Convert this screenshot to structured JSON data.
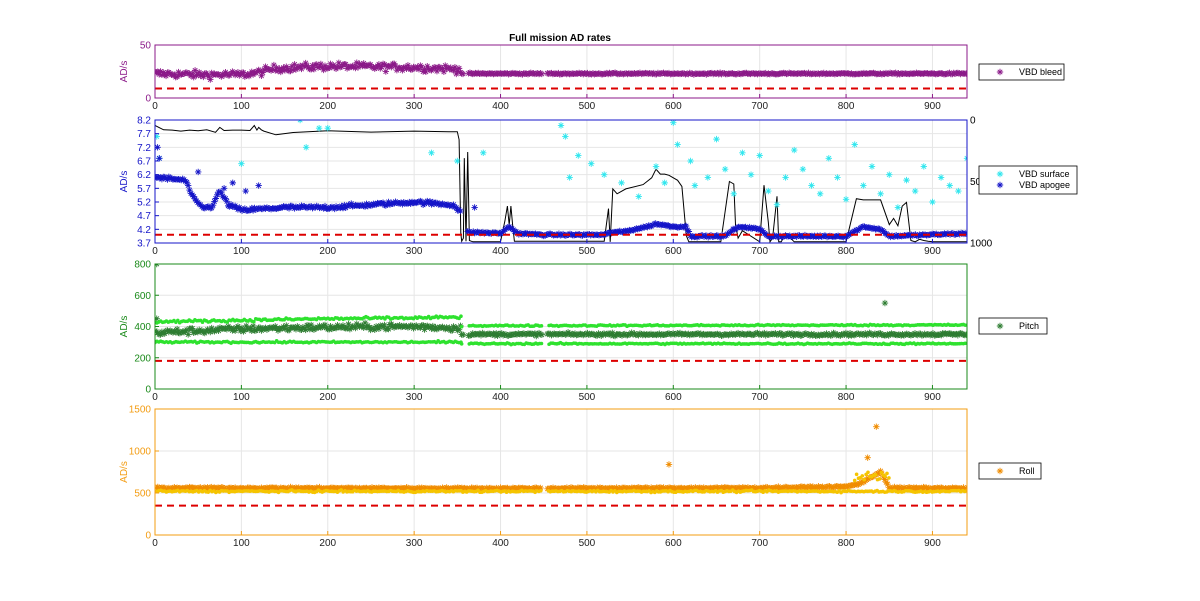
{
  "figure": {
    "title": "Full mission AD rates"
  },
  "chart_data": [
    {
      "type": "scatter",
      "ylabel": "AD/s",
      "xlim": [
        0,
        940
      ],
      "ylim": [
        0,
        50
      ],
      "xticks": [
        0,
        100,
        200,
        300,
        400,
        500,
        600,
        700,
        800,
        900
      ],
      "yticks": [
        0,
        50
      ],
      "grid": true,
      "legend_position": "right",
      "axis_color": "#8b1a89",
      "threshold": {
        "value": 9,
        "color": "#dd0000",
        "style": "dashed"
      },
      "gaps": [
        [
          357,
          362
        ],
        [
          448,
          454
        ]
      ],
      "series": [
        {
          "name": "VBD bleed",
          "color": "#8b1a89",
          "marker": "asterisk",
          "segments": [
            {
              "x": [
                0,
                50,
                100,
                120,
                140,
                200,
                300,
                355
              ],
              "y": [
                23,
                22,
                22,
                24,
                28,
                30,
                29,
                27
              ],
              "spread": 6
            },
            {
              "x": [
                355,
                940
              ],
              "y": [
                23,
                23
              ],
              "spread": 1.2
            }
          ]
        }
      ]
    },
    {
      "type": "scatter",
      "ylabel": "AD/s",
      "xlim": [
        0,
        940
      ],
      "ylim": [
        3.7,
        8.2
      ],
      "xticks": [
        0,
        100,
        200,
        300,
        400,
        500,
        600,
        700,
        800,
        900
      ],
      "yticks": [
        3.7,
        4.2,
        4.7,
        5.2,
        5.7,
        6.2,
        6.7,
        7.2,
        7.7,
        8.2
      ],
      "y2lim": [
        0,
        1000
      ],
      "y2ticks": [
        0,
        500,
        1000
      ],
      "y2reversed": true,
      "grid": true,
      "legend_position": "right",
      "axis_color": "#1515c8",
      "threshold": {
        "value": 4.0,
        "color": "#dd0000",
        "style": "dashed"
      },
      "series": [
        {
          "name": "VBD surface",
          "color": "#2fe6ee",
          "marker": "asterisk",
          "points": [
            [
              2,
              7.6
            ],
            [
              5,
              6.8
            ],
            [
              100,
              6.6
            ],
            [
              168,
              8.2
            ],
            [
              175,
              7.2
            ],
            [
              190,
              7.9
            ],
            [
              200,
              7.9
            ],
            [
              320,
              7.0
            ],
            [
              350,
              6.7
            ],
            [
              380,
              7.0
            ],
            [
              470,
              8.0
            ],
            [
              475,
              7.6
            ],
            [
              480,
              6.1
            ],
            [
              490,
              6.9
            ],
            [
              505,
              6.6
            ],
            [
              520,
              6.2
            ],
            [
              540,
              5.9
            ],
            [
              560,
              5.4
            ],
            [
              580,
              6.5
            ],
            [
              590,
              5.9
            ],
            [
              600,
              8.1
            ],
            [
              605,
              7.3
            ],
            [
              620,
              6.7
            ],
            [
              625,
              5.8
            ],
            [
              640,
              6.1
            ],
            [
              650,
              7.5
            ],
            [
              660,
              6.4
            ],
            [
              670,
              5.5
            ],
            [
              680,
              7.0
            ],
            [
              690,
              6.2
            ],
            [
              700,
              6.9
            ],
            [
              710,
              5.6
            ],
            [
              720,
              5.1
            ],
            [
              730,
              6.1
            ],
            [
              740,
              7.1
            ],
            [
              750,
              6.4
            ],
            [
              760,
              5.8
            ],
            [
              770,
              5.5
            ],
            [
              780,
              6.8
            ],
            [
              790,
              6.1
            ],
            [
              800,
              5.3
            ],
            [
              810,
              7.3
            ],
            [
              820,
              5.8
            ],
            [
              830,
              6.5
            ],
            [
              840,
              5.5
            ],
            [
              850,
              6.2
            ],
            [
              860,
              5.0
            ],
            [
              870,
              6.0
            ],
            [
              880,
              5.6
            ],
            [
              890,
              6.5
            ],
            [
              900,
              5.2
            ],
            [
              910,
              6.1
            ],
            [
              920,
              5.8
            ],
            [
              930,
              5.6
            ],
            [
              940,
              6.8
            ]
          ]
        },
        {
          "name": "VBD apogee",
          "color": "#1515c8",
          "marker": "asterisk",
          "segments": [
            {
              "x": [
                0,
                35,
                45,
                55,
                65,
                75,
                85,
                100,
                150,
                200,
                250,
                300,
                345,
                355
              ],
              "y": [
                6.1,
                6.0,
                5.3,
                5.0,
                5.0,
                5.6,
                5.1,
                4.9,
                5.0,
                5.0,
                5.1,
                5.2,
                5.1,
                4.8
              ],
              "spread": 0.12
            },
            {
              "x": [
                362,
                400,
                410,
                420,
                450,
                520,
                530,
                540,
                570,
                580,
                600,
                615,
                620,
                660,
                670,
                680,
                700,
                710,
                800,
                820,
                840,
                850,
                940
              ],
              "y": [
                4.1,
                4.05,
                4.3,
                4.05,
                4.0,
                4.0,
                4.1,
                4.1,
                4.3,
                4.4,
                4.3,
                4.3,
                3.95,
                3.95,
                4.2,
                4.3,
                4.2,
                3.95,
                3.95,
                4.3,
                4.2,
                3.95,
                4.05
              ],
              "spread": 0.06
            }
          ],
          "extra_points": [
            [
              3,
              7.2
            ],
            [
              5,
              6.8
            ],
            [
              50,
              6.3
            ],
            [
              80,
              5.7
            ],
            [
              90,
              5.9
            ],
            [
              105,
              5.6
            ],
            [
              120,
              5.8
            ],
            [
              370,
              5.0
            ]
          ]
        }
      ],
      "secondary_line": {
        "color": "#000000",
        "x": [
          0,
          10,
          20,
          30,
          40,
          50,
          60,
          70,
          75,
          80,
          90,
          100,
          110,
          115,
          118,
          120,
          123,
          126,
          140,
          160,
          200,
          250,
          300,
          340,
          350,
          352,
          354,
          355,
          357,
          358,
          360,
          362,
          364,
          366,
          368,
          400,
          405,
          408,
          410,
          412,
          414,
          416,
          420,
          460,
          520,
          525,
          527,
          530,
          535,
          540,
          545,
          565,
          575,
          580,
          585,
          590,
          595,
          600,
          605,
          610,
          615,
          618,
          620,
          640,
          655,
          665,
          670,
          672,
          675,
          680,
          700,
          705,
          710,
          712,
          715,
          720,
          722,
          725,
          730,
          740,
          800,
          812,
          820,
          840,
          850,
          855,
          860,
          865,
          870,
          875,
          880,
          885,
          890,
          895,
          900,
          940
        ],
        "y": [
          45,
          80,
          82,
          90,
          82,
          88,
          80,
          100,
          60,
          85,
          82,
          82,
          85,
          45,
          82,
          60,
          80,
          90,
          120,
          102,
          88,
          98,
          90,
          95,
          95,
          160,
          920,
          985,
          960,
          310,
          985,
          260,
          980,
          985,
          990,
          990,
          820,
          700,
          855,
          700,
          850,
          985,
          985,
          985,
          985,
          720,
          990,
          560,
          600,
          580,
          560,
          525,
          470,
          400,
          440,
          440,
          450,
          470,
          490,
          540,
          940,
          990,
          990,
          990,
          990,
          500,
          520,
          850,
          960,
          900,
          990,
          530,
          830,
          990,
          960,
          620,
          990,
          990,
          920,
          990,
          990,
          640,
          650,
          650,
          850,
          800,
          860,
          700,
          670,
          980,
          990,
          970,
          980,
          985,
          990,
          990
        ]
      }
    },
    {
      "type": "scatter",
      "ylabel": "AD/s",
      "xlim": [
        0,
        940
      ],
      "ylim": [
        0,
        800
      ],
      "xticks": [
        0,
        100,
        200,
        300,
        400,
        500,
        600,
        700,
        800,
        900
      ],
      "yticks": [
        0,
        200,
        400,
        600,
        800
      ],
      "grid": true,
      "legend_position": "right",
      "axis_color": "#1a8a1a",
      "threshold": {
        "value": 180,
        "color": "#dd0000",
        "style": "dashed"
      },
      "gaps": [
        [
          357,
          362
        ],
        [
          448,
          454
        ]
      ],
      "series": [
        {
          "name": "Pitch",
          "color": "#2e7d32",
          "marker": "asterisk",
          "segments": [
            {
              "x": [
                0,
                100,
                200,
                300,
                355
              ],
              "y": [
                360,
                385,
                395,
                400,
                390
              ],
              "spread": 35
            },
            {
              "x": [
                355,
                940
              ],
              "y": [
                350,
                350
              ],
              "spread": 15
            }
          ],
          "extra_points": [
            [
              2,
              800
            ],
            [
              2,
              450
            ],
            [
              845,
              550
            ]
          ]
        },
        {
          "name": "",
          "color": "#2ee22e",
          "marker": "dot",
          "segments": [
            {
              "x": [
                0,
                100,
                200,
                300,
                355
              ],
              "y": [
                430,
                440,
                450,
                455,
                460
              ],
              "spread": 15
            },
            {
              "x": [
                0,
                355
              ],
              "y": [
                300,
                300
              ],
              "spread": 10
            },
            {
              "x": [
                355,
                940
              ],
              "y": [
                405,
                410
              ],
              "spread": 8
            },
            {
              "x": [
                355,
                940
              ],
              "y": [
                290,
                290
              ],
              "spread": 8
            }
          ]
        }
      ]
    },
    {
      "type": "scatter",
      "ylabel": "AD/s",
      "xlim": [
        0,
        940
      ],
      "ylim": [
        0,
        1500
      ],
      "xticks": [
        0,
        100,
        200,
        300,
        400,
        500,
        600,
        700,
        800,
        900
      ],
      "yticks": [
        0,
        500,
        1000,
        1500
      ],
      "grid": true,
      "legend_position": "right",
      "axis_color": "#f39c12",
      "threshold": {
        "value": 350,
        "color": "#dd0000",
        "style": "dashed"
      },
      "gaps": [
        [
          448,
          454
        ]
      ],
      "series": [
        {
          "name": "Roll",
          "color": "#f08c00",
          "marker": "asterisk",
          "segments": [
            {
              "x": [
                0,
                400,
                700,
                800,
                815,
                830,
                840,
                845,
                850,
                940
              ],
              "y": [
                560,
                555,
                560,
                575,
                610,
                690,
                760,
                660,
                560,
                555
              ],
              "spread": 18
            }
          ],
          "extra_points": [
            [
              595,
              840
            ],
            [
              835,
              1290
            ],
            [
              825,
              920
            ]
          ]
        },
        {
          "name": "",
          "color": "#f5c400",
          "marker": "dot",
          "segments": [
            {
              "x": [
                0,
                940
              ],
              "y": [
                520,
                520
              ],
              "spread": 20
            },
            {
              "x": [
                810,
                850
              ],
              "y": [
                700,
                700
              ],
              "spread": 120
            }
          ]
        }
      ]
    }
  ]
}
